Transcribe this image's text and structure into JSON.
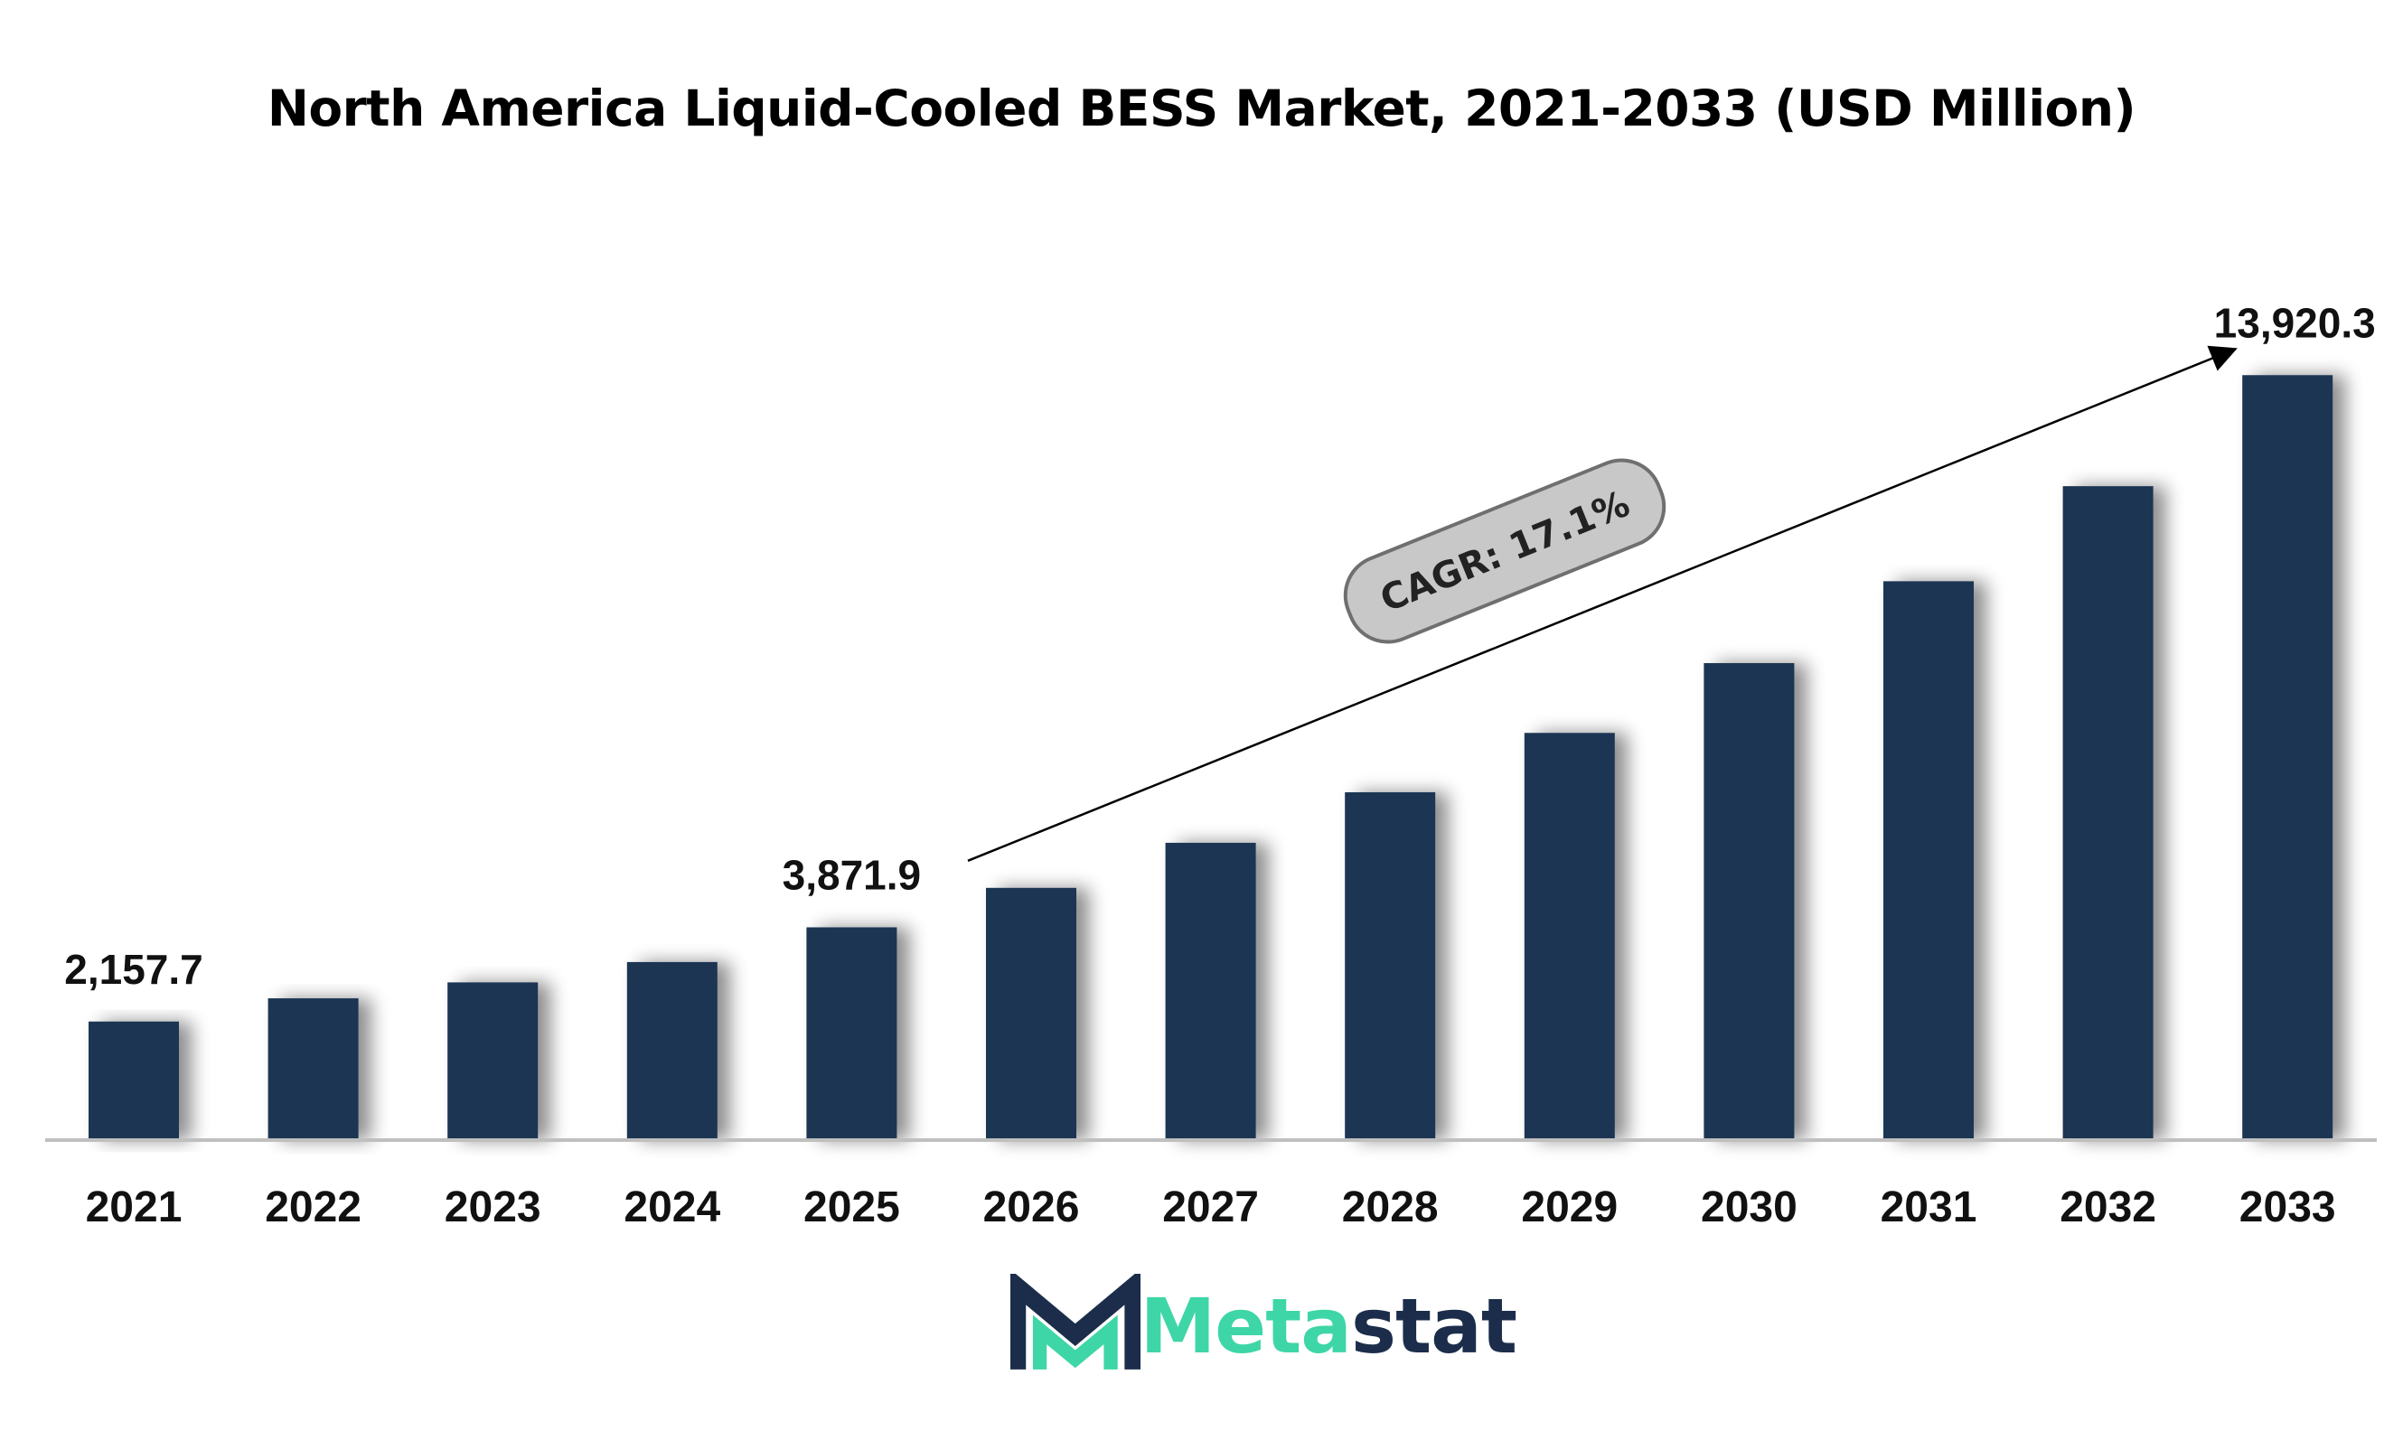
{
  "chart_data": {
    "type": "bar",
    "title": "North America Liquid-Cooled BESS Market, 2021-2033 (USD Million)",
    "xlabel": "",
    "ylabel": "",
    "categories": [
      "2021",
      "2022",
      "2023",
      "2024",
      "2025",
      "2026",
      "2027",
      "2028",
      "2029",
      "2030",
      "2031",
      "2032",
      "2033"
    ],
    "values": [
      2157.7,
      2580,
      2870,
      3240,
      3871.9,
      4590,
      5410,
      6330,
      7410,
      8680,
      10170,
      11900,
      13920.3
    ],
    "data_labels": [
      {
        "category": "2021",
        "text": "2,157.7"
      },
      {
        "category": "2025",
        "text": "3,871.9"
      },
      {
        "category": "2033",
        "text": "13,920.3"
      }
    ],
    "annotation": {
      "text": "CAGR: 17.1%",
      "from_category": "2026",
      "to_category": "2033"
    },
    "ylim": [
      0,
      14500
    ],
    "grid": false,
    "legend": "none",
    "bar_color": "#1b3553"
  },
  "logo": {
    "part1": "Meta",
    "part2": "stat",
    "accent_color": "#3ed6a6",
    "dark_color": "#1b2d4a"
  }
}
